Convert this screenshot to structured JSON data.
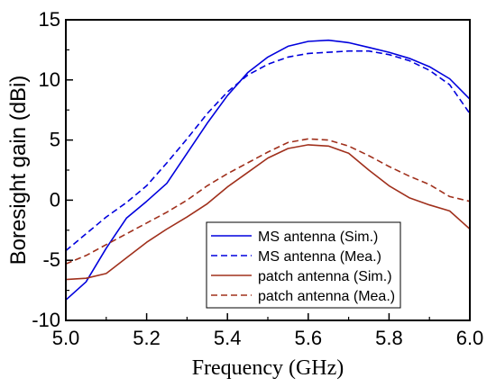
{
  "chart_data": {
    "type": "line",
    "title": "",
    "xlabel": "Frequency (GHz)",
    "ylabel": "Boresight gain (dBi)",
    "xlim": [
      5.0,
      6.0
    ],
    "ylim": [
      -10,
      15
    ],
    "xticks": [
      5.0,
      5.2,
      5.4,
      5.6,
      5.8,
      6.0
    ],
    "xtick_labels": [
      "5.0",
      "5.2",
      "5.4",
      "5.6",
      "5.8",
      "6.0"
    ],
    "yticks": [
      -10,
      -5,
      0,
      5,
      10,
      15
    ],
    "ytick_labels": [
      "-10",
      "-5",
      "0",
      "5",
      "10",
      "15"
    ],
    "grid": false,
    "legend_position": "bottom-center",
    "series": [
      {
        "name": "MS antenna (Sim.)",
        "color": "#0000dd",
        "dash": "solid",
        "x": [
          5.0,
          5.05,
          5.1,
          5.15,
          5.2,
          5.25,
          5.3,
          5.35,
          5.4,
          5.45,
          5.5,
          5.55,
          5.6,
          5.65,
          5.7,
          5.75,
          5.8,
          5.85,
          5.9,
          5.95,
          6.0
        ],
        "y": [
          -8.3,
          -6.8,
          -4.0,
          -1.5,
          -0.1,
          1.4,
          3.9,
          6.4,
          8.7,
          10.6,
          11.9,
          12.8,
          13.2,
          13.3,
          13.1,
          12.7,
          12.3,
          11.8,
          11.1,
          10.1,
          8.4
        ]
      },
      {
        "name": "MS antenna (Mea.)",
        "color": "#0000dd",
        "dash": "dashed",
        "x": [
          5.0,
          5.05,
          5.1,
          5.15,
          5.2,
          5.25,
          5.3,
          5.35,
          5.4,
          5.45,
          5.5,
          5.55,
          5.6,
          5.65,
          5.7,
          5.75,
          5.8,
          5.85,
          5.9,
          5.95,
          6.0
        ],
        "y": [
          -4.2,
          -2.8,
          -1.4,
          -0.2,
          1.2,
          3.1,
          5.1,
          7.2,
          9.0,
          10.4,
          11.3,
          11.9,
          12.2,
          12.3,
          12.4,
          12.4,
          12.1,
          11.6,
          10.8,
          9.6,
          7.2
        ]
      },
      {
        "name": "patch antenna (Sim.)",
        "color": "#a0301c",
        "dash": "solid",
        "x": [
          5.0,
          5.05,
          5.1,
          5.15,
          5.2,
          5.25,
          5.3,
          5.35,
          5.4,
          5.45,
          5.5,
          5.55,
          5.6,
          5.65,
          5.7,
          5.75,
          5.8,
          5.85,
          5.9,
          5.95,
          6.0
        ],
        "y": [
          -6.6,
          -6.5,
          -6.1,
          -4.8,
          -3.5,
          -2.4,
          -1.4,
          -0.3,
          1.1,
          2.3,
          3.5,
          4.3,
          4.6,
          4.5,
          3.9,
          2.5,
          1.2,
          0.2,
          -0.4,
          -0.9,
          -2.4
        ]
      },
      {
        "name": "patch antenna (Mea.)",
        "color": "#a0301c",
        "dash": "dashed",
        "x": [
          5.0,
          5.05,
          5.1,
          5.15,
          5.2,
          5.25,
          5.3,
          5.35,
          5.4,
          5.45,
          5.5,
          5.55,
          5.6,
          5.65,
          5.7,
          5.75,
          5.8,
          5.85,
          5.9,
          5.95,
          6.0
        ],
        "y": [
          -5.3,
          -4.6,
          -3.7,
          -2.8,
          -1.9,
          -1.0,
          0.0,
          1.2,
          2.2,
          3.1,
          4.0,
          4.8,
          5.1,
          5.0,
          4.5,
          3.7,
          2.8,
          2.0,
          1.3,
          0.3,
          -0.1
        ]
      }
    ]
  }
}
